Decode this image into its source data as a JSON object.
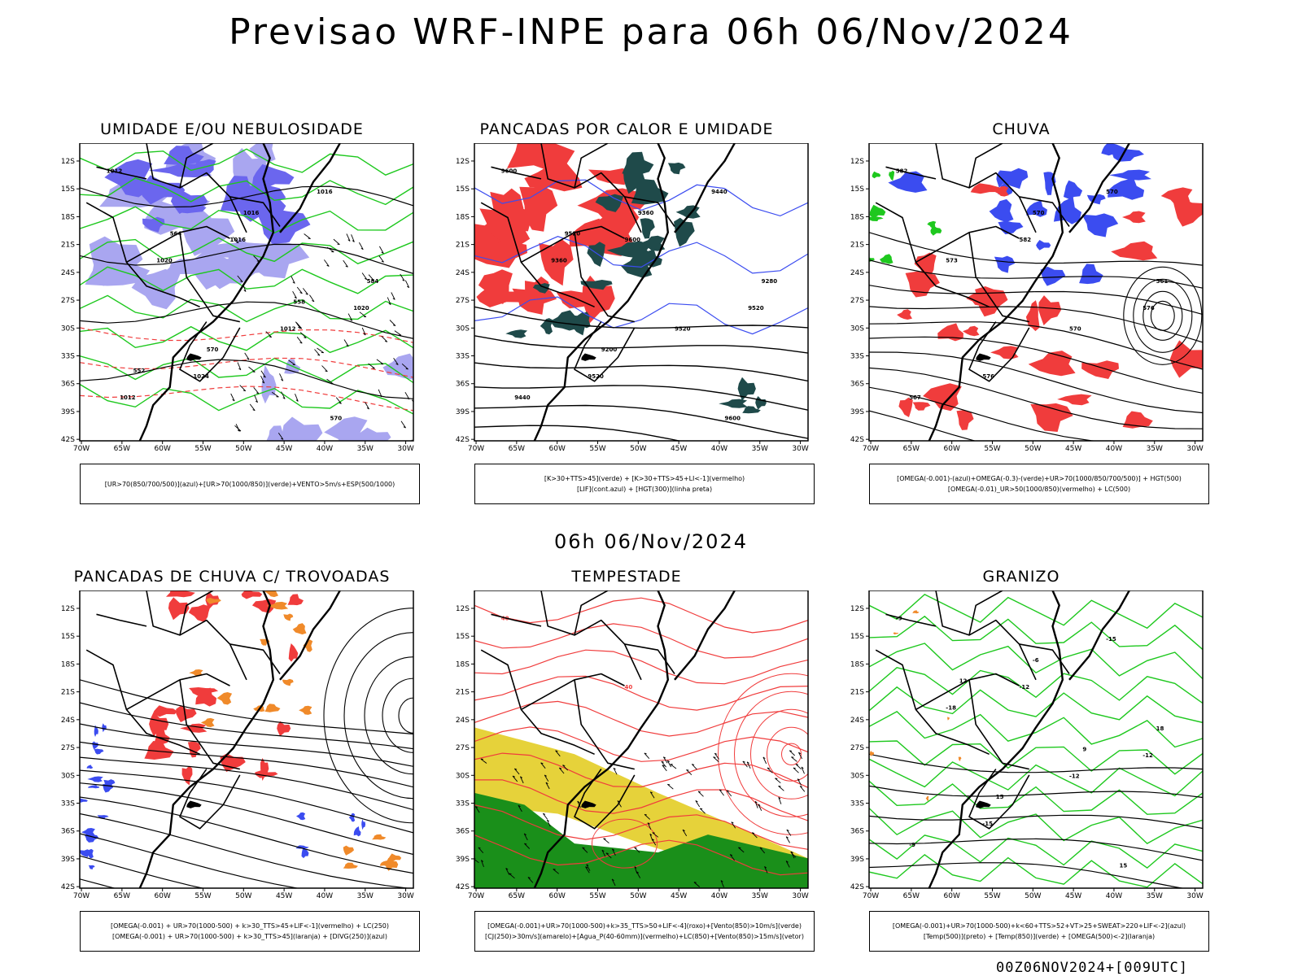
{
  "title": "Previsao WRF-INPE  para 06h 06/Nov/2024",
  "mid_date": "06h 06/Nov/2024",
  "footer": "00Z06NOV2024+[009UTC]",
  "axes": {
    "lat_labels": [
      "12S",
      "15S",
      "18S",
      "21S",
      "24S",
      "27S",
      "30S",
      "33S",
      "36S",
      "39S",
      "42S"
    ],
    "lon_labels": [
      "70W",
      "65W",
      "60W",
      "55W",
      "50W",
      "45W",
      "40W",
      "35W",
      "30W"
    ]
  },
  "colors": {
    "blue": "#3b4cf0",
    "lightblue": "#a9a6f0",
    "midblue": "#6b66ee",
    "green": "#1ec81e",
    "red": "#f03c3c",
    "darkteal": "#1f4a4a",
    "orange": "#f08a2a",
    "yellow": "#e6d23a",
    "darkgreen": "#1a8f1a",
    "black": "#000000"
  },
  "panels": [
    {
      "title": "UMIDADE E/OU NEBULOSIDADE",
      "legend": [
        "[UR>70(850/700/500)](azul)+[UR>70(1000/850)](verde)+VENTO>5m/s+ESP(500/1000)"
      ],
      "contour_labels": [
        "1012",
        "1016",
        "1020",
        "1024",
        "1016",
        "1020",
        "1012",
        "1012",
        "1016",
        "584",
        "570",
        "570",
        "564",
        "558",
        "552"
      ]
    },
    {
      "title": "PANCADAS POR CALOR E UMIDADE",
      "legend": [
        "[K>30+TTS>45](verde) + [K>30+TTS>45+LI<-1](vermelho)",
        "[LIF](cont.azul) + [HGT(300)](linha preta)"
      ],
      "contour_labels": [
        "9600",
        "9600",
        "9520",
        "9520",
        "9440",
        "9360",
        "9520",
        "9440",
        "9360",
        "9280",
        "9200",
        "9600",
        "9520"
      ]
    },
    {
      "title": "CHUVA",
      "legend": [
        "[OMEGA(-0.001)-(azul)+OMEGA(-0.3)-(verde)+UR>70(1000/850/700/500)] + HGT(500)",
        "[OMEGA(-0.01)_UR>50(1000/850)(vermelho) + LC(500)"
      ],
      "contour_labels": [
        "582",
        "582",
        "576",
        "576",
        "570",
        "573",
        "570",
        "567",
        "570",
        "561"
      ]
    },
    {
      "title": "PANCADAS DE CHUVA C/ TROVOADAS",
      "legend": [
        "[OMEGA(-0.001) + UR>70(1000-500) + k>30_TTS>45+LIF<-1](vermelho) + LC(250)",
        "[OMEGA(-0.001) + UR>70(1000-500) + k>30_TTS>45](laranja) + [DIVG(250)](azul)"
      ],
      "contour_labels": []
    },
    {
      "title": "TEMPESTADE",
      "legend": [
        "[OMEGA(-0.001)+UR>70(1000-500)+k>35_TTS>50+LIF<-4](roxo)+[Vento(850)>10m/s](verde)",
        "[CJ(250)>30m/s](amarelo)+[Agua_P(40-60mm)](vermelho)+LC(850)+[Vento(850)>15m/s](vetor)"
      ],
      "contour_labels": [
        "40",
        "40"
      ]
    },
    {
      "title": "GRANIZO",
      "legend": [
        "[OMEGA(-0.001)+UR>70(1000-500)+k<60+TTS>52+VT>25+SWEAT>220+LIF<-2](azul)",
        "[Temp(500)](preto) + [Temp(850)](verde) + [OMEGA(500)<-2](laranja)"
      ],
      "contour_labels": [
        "-9",
        "-12",
        "-12",
        "-15",
        "-15",
        "-18",
        "-12",
        "-9",
        "-6",
        "18",
        "15",
        "15",
        "12",
        "9"
      ]
    }
  ]
}
